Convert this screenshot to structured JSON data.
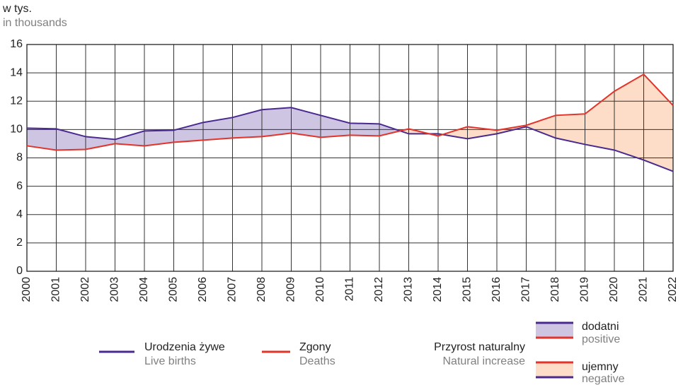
{
  "chart_data": {
    "type": "line",
    "y_label": "w tys.",
    "y_label_en": "in thousands",
    "categories": [
      2000,
      2001,
      2002,
      2003,
      2004,
      2005,
      2006,
      2007,
      2008,
      2009,
      2010,
      2011,
      2012,
      2013,
      2014,
      2015,
      2016,
      2017,
      2018,
      2019,
      2020,
      2021,
      2022
    ],
    "series": [
      {
        "name": "Urodzenia żywe",
        "name_en": "Live births",
        "color": "#4b2a8f",
        "values": [
          10.1,
          10.05,
          9.5,
          9.3,
          9.9,
          9.95,
          10.5,
          10.85,
          11.4,
          11.55,
          11.0,
          10.45,
          10.4,
          9.7,
          9.7,
          9.35,
          9.7,
          10.2,
          9.4,
          8.95,
          8.55,
          7.85,
          7.05
        ]
      },
      {
        "name": "Zgony",
        "name_en": "Deaths",
        "color": "#e2342a",
        "values": [
          8.85,
          8.55,
          8.6,
          9.0,
          8.85,
          9.1,
          9.25,
          9.4,
          9.5,
          9.75,
          9.45,
          9.6,
          9.55,
          10.05,
          9.55,
          10.2,
          9.95,
          10.3,
          11.0,
          11.1,
          12.7,
          13.9,
          11.7
        ]
      }
    ],
    "fill": {
      "title": "Przyrost naturalny",
      "title_en": "Natural increase",
      "positive": {
        "label": "dodatni",
        "label_en": "positive",
        "color": "#cdc5e2"
      },
      "negative": {
        "label": "ujemny",
        "label_en": "negative",
        "color": "#fddcc8"
      }
    },
    "ylim": [
      0,
      16
    ],
    "yticks": [
      0,
      2,
      4,
      6,
      8,
      10,
      12,
      14,
      16
    ],
    "grid": true
  }
}
